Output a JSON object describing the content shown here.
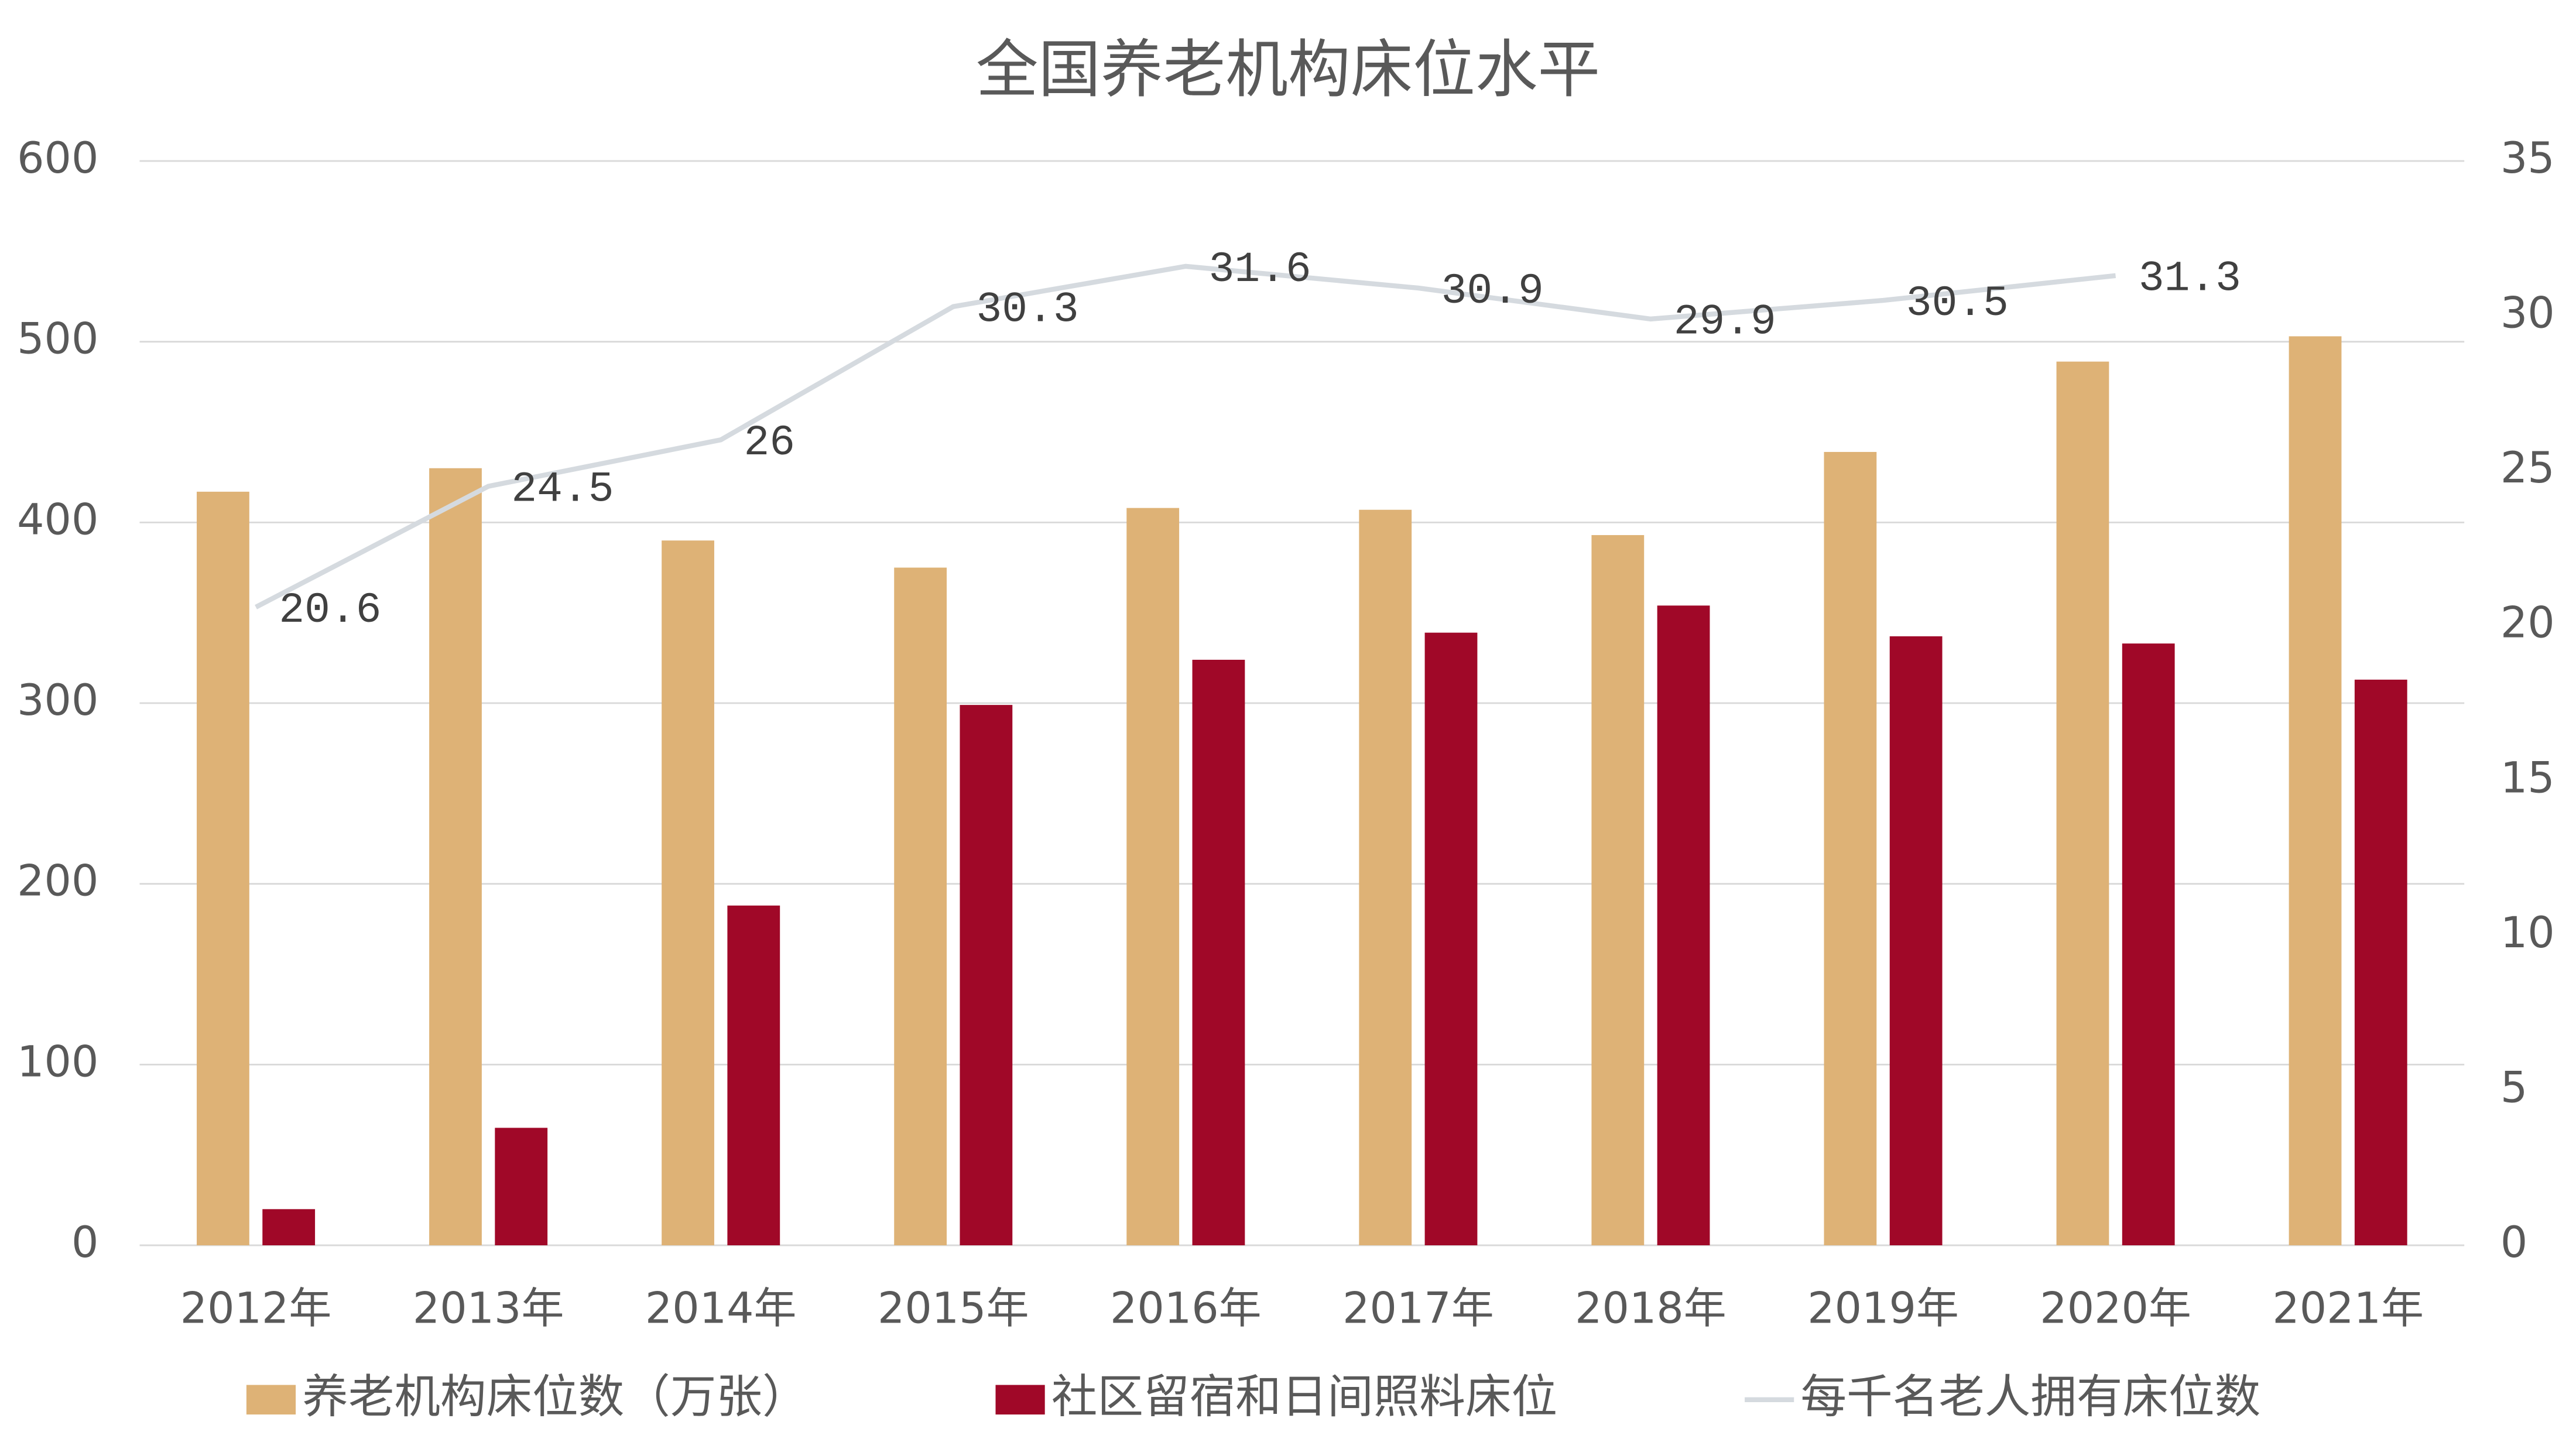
{
  "chart_data": {
    "type": "bar",
    "title": "全国养老机构床位水平",
    "categories": [
      "2012年",
      "2013年",
      "2014年",
      "2015年",
      "2016年",
      "2017年",
      "2018年",
      "2019年",
      "2020年",
      "2021年"
    ],
    "series": [
      {
        "name": "养老机构床位数（万张）",
        "color": "#DEB276",
        "type": "bar",
        "values": [
          417,
          430,
          390,
          375,
          408,
          407,
          393,
          439,
          489,
          503
        ]
      },
      {
        "name": "社区留宿和日间照料床位",
        "color": "#A00828",
        "type": "bar",
        "values": [
          20,
          65,
          188,
          299,
          324,
          339,
          354,
          337,
          333,
          313
        ]
      },
      {
        "name": "每千名老人拥有床位数",
        "color": "#D5DADF",
        "type": "line",
        "axis": "y2",
        "values": [
          20.6,
          24.5,
          26,
          30.3,
          31.6,
          30.9,
          29.9,
          30.5,
          31.3,
          null
        ]
      }
    ],
    "ylim": [
      0,
      600
    ],
    "yticks": [
      0,
      100,
      200,
      300,
      400,
      500,
      600
    ],
    "y2lim": [
      0,
      35
    ],
    "y2ticks": [
      0,
      5,
      10,
      15,
      20,
      25,
      30,
      35
    ],
    "grid": true,
    "legend": "bottom"
  }
}
